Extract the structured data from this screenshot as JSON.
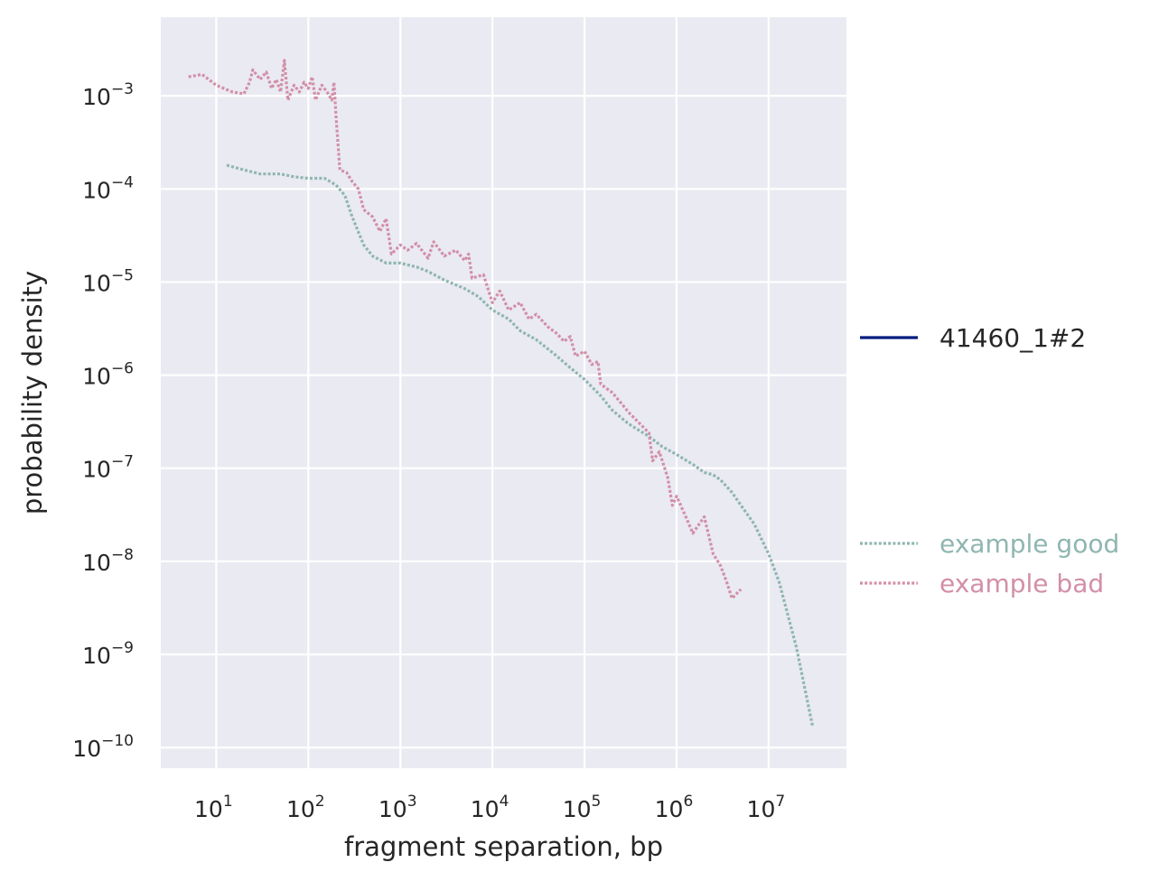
{
  "chart_data": {
    "type": "line",
    "title": "",
    "xlabel": "fragment separation, bp",
    "ylabel": "probability density",
    "x_scale": "log",
    "y_scale": "log",
    "xlim": [
      2.5,
      70000000
    ],
    "ylim": [
      6e-11,
      0.007
    ],
    "x_ticks": [
      {
        "value": 10,
        "base": "10",
        "exp": "1"
      },
      {
        "value": 100,
        "base": "10",
        "exp": "2"
      },
      {
        "value": 1000,
        "base": "10",
        "exp": "3"
      },
      {
        "value": 10000,
        "base": "10",
        "exp": "4"
      },
      {
        "value": 100000,
        "base": "10",
        "exp": "5"
      },
      {
        "value": 1000000,
        "base": "10",
        "exp": "6"
      },
      {
        "value": 10000000,
        "base": "10",
        "exp": "7"
      }
    ],
    "y_ticks": [
      {
        "value": 0.001,
        "base": "10",
        "exp": "−3"
      },
      {
        "value": 0.0001,
        "base": "10",
        "exp": "−4"
      },
      {
        "value": 1e-05,
        "base": "10",
        "exp": "−5"
      },
      {
        "value": 1e-06,
        "base": "10",
        "exp": "−6"
      },
      {
        "value": 1e-07,
        "base": "10",
        "exp": "−7"
      },
      {
        "value": 1e-08,
        "base": "10",
        "exp": "−8"
      },
      {
        "value": 1e-09,
        "base": "10",
        "exp": "−9"
      },
      {
        "value": 1e-10,
        "base": "10",
        "exp": "−10"
      }
    ],
    "grid": true,
    "legend_placement": "right",
    "series": [
      {
        "name": "41460_1#2",
        "color": "#001c7f",
        "style": "solid",
        "points": []
      },
      {
        "name": "example good",
        "color": "#8fb6b0",
        "style": "dotted",
        "points": [
          [
            13,
            0.00018
          ],
          [
            20,
            0.00016
          ],
          [
            30,
            0.000145
          ],
          [
            50,
            0.000145
          ],
          [
            70,
            0.000135
          ],
          [
            100,
            0.00013
          ],
          [
            150,
            0.00013
          ],
          [
            200,
            0.00011
          ],
          [
            250,
            8.5e-05
          ],
          [
            300,
            5e-05
          ],
          [
            400,
            2.5e-05
          ],
          [
            500,
            1.9e-05
          ],
          [
            700,
            1.6e-05
          ],
          [
            1000,
            1.6e-05
          ],
          [
            1500,
            1.45e-05
          ],
          [
            2000,
            1.3e-05
          ],
          [
            3000,
            1.05e-05
          ],
          [
            5000,
            8.5e-06
          ],
          [
            7000,
            7e-06
          ],
          [
            10000,
            5e-06
          ],
          [
            15000,
            4e-06
          ],
          [
            20000,
            3e-06
          ],
          [
            30000,
            2.4e-06
          ],
          [
            50000,
            1.6e-06
          ],
          [
            70000,
            1.2e-06
          ],
          [
            100000,
            9e-07
          ],
          [
            150000,
            6e-07
          ],
          [
            200000,
            4.2e-07
          ],
          [
            300000,
            3e-07
          ],
          [
            500000,
            2.2e-07
          ],
          [
            700000,
            1.7e-07
          ],
          [
            1000000,
            1.4e-07
          ],
          [
            1500000,
            1.1e-07
          ],
          [
            2000000,
            9e-08
          ],
          [
            2500000,
            8.5e-08
          ],
          [
            3000000,
            7.5e-08
          ],
          [
            4000000,
            5.5e-08
          ],
          [
            5000000,
            4e-08
          ],
          [
            7000000,
            2.5e-08
          ],
          [
            10000000,
            1.2e-08
          ],
          [
            13000000,
            6e-09
          ],
          [
            20000000,
            1.2e-09
          ],
          [
            30000000,
            1.7e-10
          ]
        ]
      },
      {
        "name": "example bad",
        "color": "#d28fa8",
        "style": "dotted",
        "points": [
          [
            5,
            0.0016
          ],
          [
            7,
            0.0017
          ],
          [
            10,
            0.0013
          ],
          [
            15,
            0.0011
          ],
          [
            20,
            0.00105
          ],
          [
            23,
            0.0014
          ],
          [
            25,
            0.0019
          ],
          [
            30,
            0.0015
          ],
          [
            35,
            0.0018
          ],
          [
            40,
            0.0012
          ],
          [
            45,
            0.0015
          ],
          [
            50,
            0.0011
          ],
          [
            55,
            0.0024
          ],
          [
            60,
            0.0009
          ],
          [
            70,
            0.0013
          ],
          [
            80,
            0.0011
          ],
          [
            90,
            0.0014
          ],
          [
            100,
            0.0012
          ],
          [
            110,
            0.0016
          ],
          [
            120,
            0.0009
          ],
          [
            140,
            0.0013
          ],
          [
            160,
            0.0011
          ],
          [
            180,
            0.0009
          ],
          [
            190,
            0.0014
          ],
          [
            200,
            0.0006
          ],
          [
            220,
            0.00016
          ],
          [
            260,
            0.00015
          ],
          [
            300,
            0.00012
          ],
          [
            350,
            0.0001
          ],
          [
            400,
            6e-05
          ],
          [
            500,
            5e-05
          ],
          [
            600,
            3.5e-05
          ],
          [
            700,
            4.8e-05
          ],
          [
            800,
            2e-05
          ],
          [
            1000,
            2.5e-05
          ],
          [
            1200,
            2.2e-05
          ],
          [
            1500,
            2.6e-05
          ],
          [
            2000,
            1.8e-05
          ],
          [
            2300,
            2.7e-05
          ],
          [
            3000,
            1.9e-05
          ],
          [
            4000,
            2.2e-05
          ],
          [
            5000,
            1.7e-05
          ],
          [
            5500,
            2e-05
          ],
          [
            6000,
            1.1e-05
          ],
          [
            8000,
            1.2e-05
          ],
          [
            10000,
            6e-06
          ],
          [
            12000,
            8e-06
          ],
          [
            15000,
            5e-06
          ],
          [
            20000,
            6e-06
          ],
          [
            25000,
            4e-06
          ],
          [
            30000,
            4.5e-06
          ],
          [
            40000,
            3.3e-06
          ],
          [
            50000,
            2.8e-06
          ],
          [
            60000,
            2.3e-06
          ],
          [
            70000,
            2.6e-06
          ],
          [
            80000,
            1.6e-06
          ],
          [
            100000,
            1.8e-06
          ],
          [
            120000,
            1.3e-06
          ],
          [
            140000,
            1.4e-06
          ],
          [
            150000,
            8e-07
          ],
          [
            200000,
            6.5e-07
          ],
          [
            250000,
            5e-07
          ],
          [
            300000,
            4e-07
          ],
          [
            400000,
            3e-07
          ],
          [
            500000,
            2.4e-07
          ],
          [
            550000,
            1.2e-07
          ],
          [
            650000,
            1.5e-07
          ],
          [
            800000,
            8e-08
          ],
          [
            900000,
            4e-08
          ],
          [
            1000000,
            5e-08
          ],
          [
            1300000,
            2.8e-08
          ],
          [
            1500000,
            2e-08
          ],
          [
            2000000,
            3e-08
          ],
          [
            2500000,
            1.2e-08
          ],
          [
            3000000,
            9e-09
          ],
          [
            3500000,
            6e-09
          ],
          [
            4000000,
            4e-09
          ],
          [
            5000000,
            5e-09
          ]
        ]
      }
    ]
  }
}
